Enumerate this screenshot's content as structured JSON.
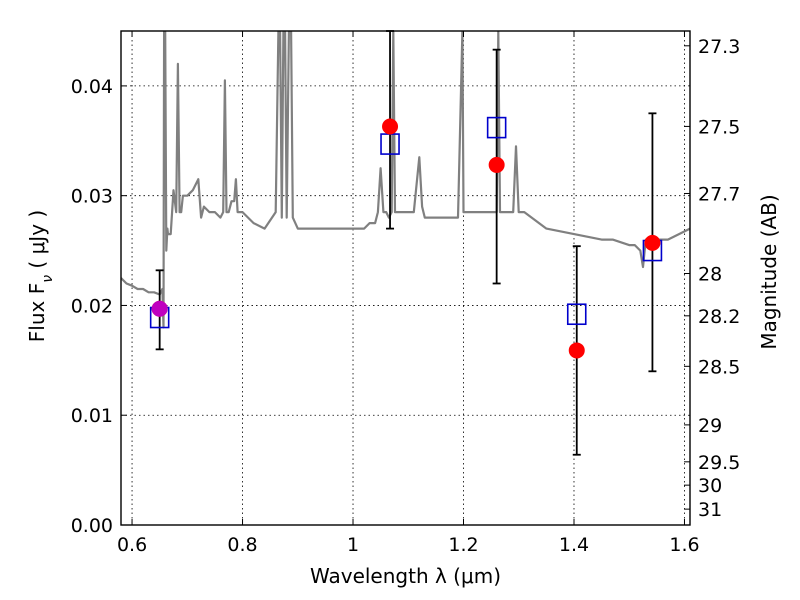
{
  "chart_data": {
    "type": "scatter",
    "xlabel": "Wavelength  λ (μm)",
    "ylabel": "Flux  F",
    "ylabel_sub": "ν",
    "ylabel_unit": "  ( μJy )",
    "ylabel_right": "Magnitude (AB)",
    "xlim": [
      0.58,
      1.61
    ],
    "ylim": [
      0.0,
      0.045
    ],
    "grid": true,
    "x_ticks": [
      {
        "value": 0.6,
        "label": "0.6"
      },
      {
        "value": 0.8,
        "label": "0.8"
      },
      {
        "value": 1.0,
        "label": "1"
      },
      {
        "value": 1.2,
        "label": "1.2"
      },
      {
        "value": 1.4,
        "label": "1.4"
      },
      {
        "value": 1.6,
        "label": "1.6"
      }
    ],
    "y_ticks": [
      {
        "value": 0.0,
        "label": "0.00"
      },
      {
        "value": 0.01,
        "label": "0.01"
      },
      {
        "value": 0.02,
        "label": "0.02"
      },
      {
        "value": 0.03,
        "label": "0.03"
      },
      {
        "value": 0.04,
        "label": "0.04"
      }
    ],
    "right_ticks": [
      {
        "mag": 27.3,
        "label": "27.3"
      },
      {
        "mag": 27.5,
        "label": "27.5"
      },
      {
        "mag": 27.7,
        "label": "27.7"
      },
      {
        "mag": 28.0,
        "label": "28"
      },
      {
        "mag": 28.2,
        "label": "28.2"
      },
      {
        "mag": 28.5,
        "label": "28.5"
      },
      {
        "mag": 29.0,
        "label": "29"
      },
      {
        "mag": 29.5,
        "label": "29.5"
      },
      {
        "mag": 30.0,
        "label": "30"
      },
      {
        "mag": 31.0,
        "label": "31"
      }
    ],
    "series": [
      {
        "kind": "spectrum",
        "color": "#808080",
        "x": [
          0.58,
          0.59,
          0.6,
          0.61,
          0.62,
          0.63,
          0.64,
          0.65,
          0.655,
          0.657,
          0.658,
          0.66,
          0.662,
          0.664,
          0.665,
          0.67,
          0.675,
          0.68,
          0.683,
          0.686,
          0.689,
          0.692,
          0.7,
          0.71,
          0.72,
          0.725,
          0.73,
          0.74,
          0.75,
          0.76,
          0.765,
          0.768,
          0.771,
          0.775,
          0.78,
          0.785,
          0.788,
          0.791,
          0.8,
          0.82,
          0.84,
          0.86,
          0.865,
          0.868,
          0.871,
          0.874,
          0.877,
          0.88,
          0.884,
          0.888,
          0.891,
          0.9,
          0.92,
          0.94,
          0.96,
          0.98,
          1.0,
          1.02,
          1.03,
          1.04,
          1.045,
          1.05,
          1.055,
          1.06,
          1.065,
          1.07,
          1.073,
          1.076,
          1.08,
          1.1,
          1.11,
          1.12,
          1.125,
          1.13,
          1.14,
          1.15,
          1.16,
          1.19,
          1.198,
          1.2,
          1.203,
          1.21,
          1.25,
          1.26,
          1.263,
          1.266,
          1.27,
          1.28,
          1.29,
          1.295,
          1.3,
          1.31,
          1.35,
          1.4,
          1.45,
          1.47,
          1.5,
          1.51,
          1.52,
          1.525,
          1.53,
          1.55,
          1.57,
          1.59,
          1.61
        ],
        "y": [
          0.0225,
          0.022,
          0.0218,
          0.0215,
          0.0215,
          0.0212,
          0.0212,
          0.021,
          0.0215,
          0.018,
          0.045,
          0.045,
          0.025,
          0.027,
          0.0265,
          0.0265,
          0.0305,
          0.0285,
          0.042,
          0.0285,
          0.0285,
          0.03,
          0.03,
          0.0305,
          0.0315,
          0.028,
          0.029,
          0.0285,
          0.0285,
          0.028,
          0.0285,
          0.0405,
          0.0285,
          0.0285,
          0.0295,
          0.0295,
          0.0315,
          0.0285,
          0.0285,
          0.0275,
          0.027,
          0.0285,
          0.045,
          0.045,
          0.028,
          0.045,
          0.045,
          0.028,
          0.045,
          0.045,
          0.028,
          0.027,
          0.027,
          0.027,
          0.027,
          0.027,
          0.027,
          0.027,
          0.0275,
          0.0275,
          0.0285,
          0.0325,
          0.0285,
          0.0285,
          0.028,
          0.0285,
          0.045,
          0.0285,
          0.0285,
          0.0285,
          0.0285,
          0.0335,
          0.029,
          0.028,
          0.028,
          0.028,
          0.028,
          0.028,
          0.045,
          0.0285,
          0.0285,
          0.0285,
          0.0285,
          0.0285,
          0.045,
          0.0285,
          0.0285,
          0.0285,
          0.0285,
          0.0345,
          0.0285,
          0.0285,
          0.027,
          0.0265,
          0.026,
          0.026,
          0.0255,
          0.0255,
          0.025,
          0.0235,
          0.026,
          0.026,
          0.026,
          0.0265,
          0.027
        ]
      },
      {
        "kind": "observed",
        "color": "#ff0000",
        "marker": "circle",
        "x": [
          0.65,
          1.067,
          1.26,
          1.405,
          1.542
        ],
        "values": [
          0.0197,
          0.0363,
          0.0328,
          0.0159,
          0.0257
        ],
        "err_low": [
          0.016,
          0.027,
          0.022,
          0.0064,
          0.014
        ],
        "err_high": [
          0.0232,
          0.045,
          0.0433,
          0.0254,
          0.0375
        ]
      },
      {
        "kind": "model",
        "color": "#0000cc",
        "marker": "square",
        "x": [
          0.65,
          1.067,
          1.26,
          1.405,
          1.542
        ],
        "values": [
          0.0189,
          0.0347,
          0.0362,
          0.0192,
          0.025
        ]
      },
      {
        "kind": "highlight",
        "color": "#bf00bf",
        "marker": "circle",
        "x": [
          0.65
        ],
        "values": [
          0.0197
        ]
      }
    ]
  }
}
